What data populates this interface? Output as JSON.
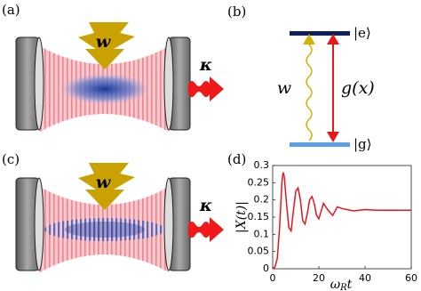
{
  "labels": {
    "a": "(a)",
    "b": "(b)",
    "c": "(c)",
    "d": "(d)",
    "pump_a": "w",
    "decay_a": "κ",
    "pump_c": "w",
    "decay_c": "κ",
    "excited": "|e⟩",
    "ground": "|g⟩",
    "drive": "w",
    "coupling": "g(x)"
  },
  "chart_data": {
    "type": "line",
    "xlabel": [
      "ω",
      "R",
      "t"
    ],
    "ylabel": "|X(t)|",
    "x": [
      0,
      1,
      2,
      3,
      4,
      4.5,
      5,
      6,
      7,
      8,
      9,
      10,
      11,
      12,
      13,
      14,
      15,
      16,
      17,
      18,
      19,
      20,
      22,
      24,
      26,
      28,
      30,
      35,
      40,
      45,
      50,
      55,
      60
    ],
    "series": [
      {
        "color": "#e8141c",
        "values": [
          0,
          0.005,
          0.03,
          0.12,
          0.25,
          0.28,
          0.27,
          0.19,
          0.12,
          0.11,
          0.17,
          0.225,
          0.235,
          0.2,
          0.14,
          0.13,
          0.16,
          0.2,
          0.21,
          0.19,
          0.155,
          0.145,
          0.19,
          0.17,
          0.155,
          0.18,
          0.175,
          0.168,
          0.172,
          0.17,
          0.17,
          0.17,
          0.17
        ]
      }
    ],
    "xlim": [
      0,
      60
    ],
    "xticks": [
      0,
      20,
      40,
      60
    ],
    "ylim": [
      0,
      0.3
    ],
    "yticks": [
      0,
      0.05,
      0.1,
      0.15,
      0.2,
      0.25,
      0.3
    ]
  }
}
